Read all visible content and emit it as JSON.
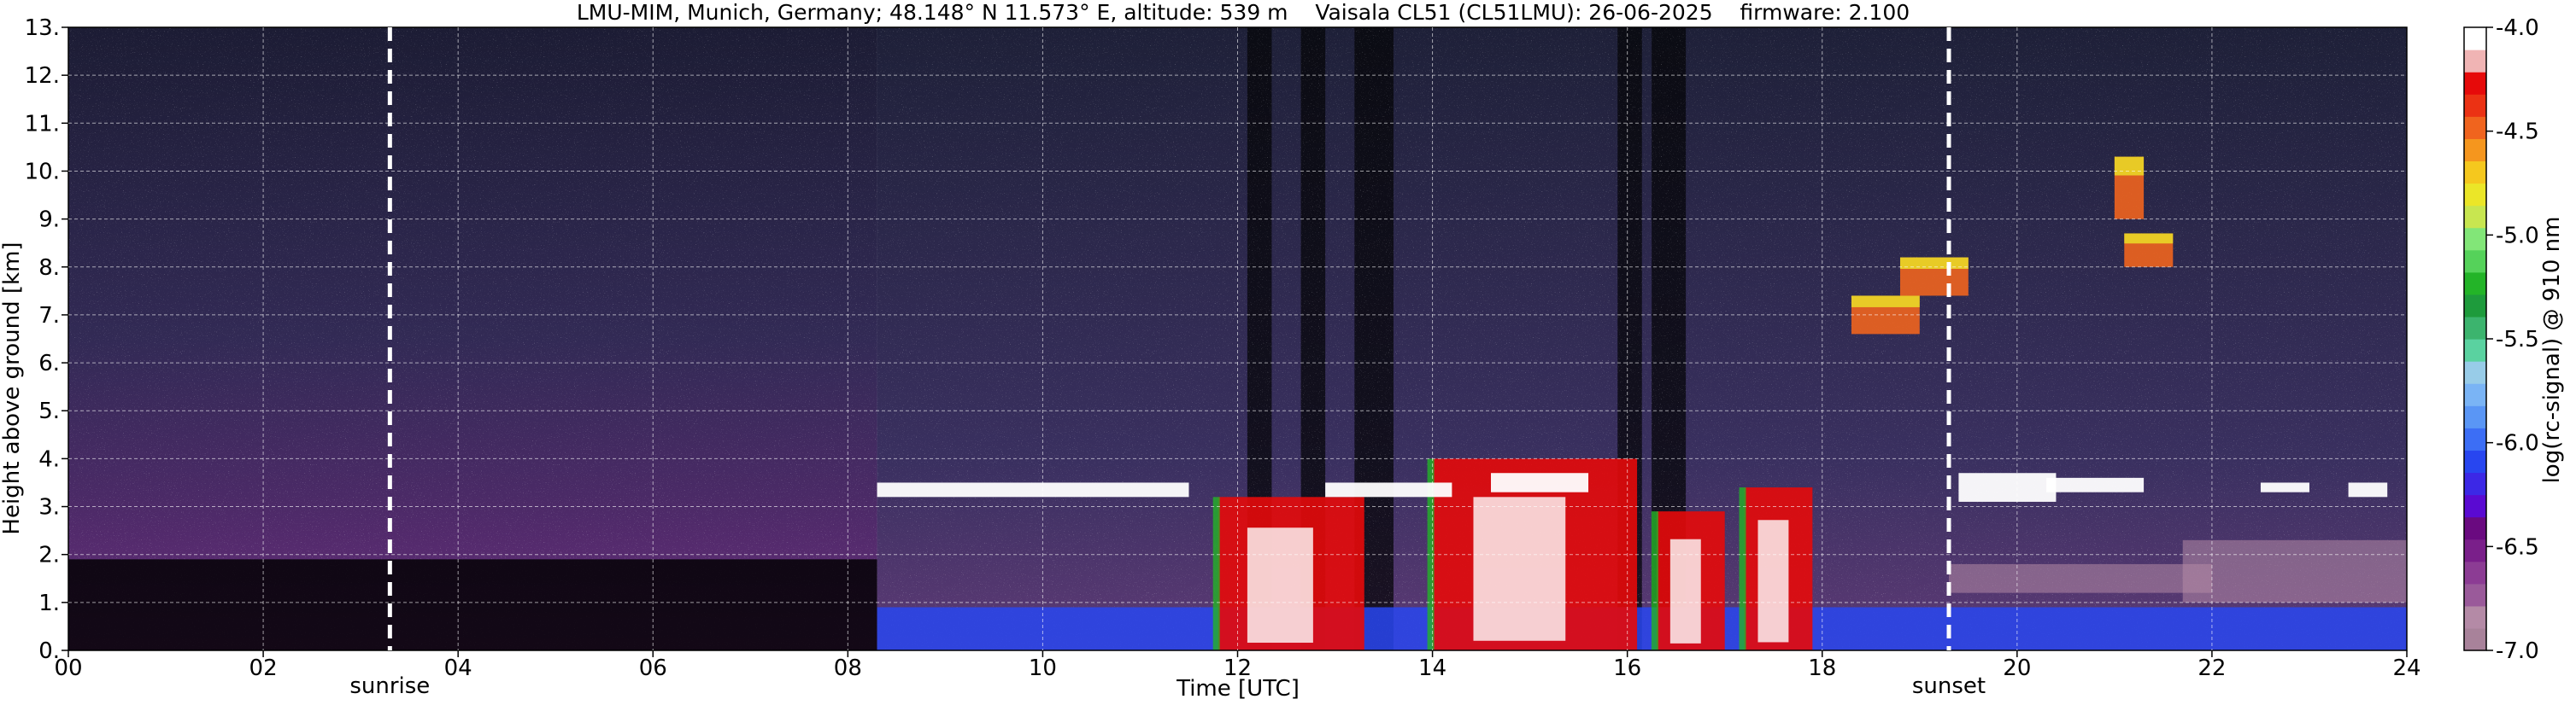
{
  "chart_data": {
    "type": "heatmap",
    "title": "LMU-MIM, Munich, Germany; 48.148° N 11.573° E, altitude: 539 m    Vaisala CL51 (CL51LMU): 26-06-2025    firmware: 2.100",
    "xlabel": "Time [UTC]",
    "ylabel": "Height above ground [km]",
    "x_range": [
      0,
      24
    ],
    "y_range": [
      0,
      13
    ],
    "x_ticks": [
      "00",
      "02",
      "04",
      "06",
      "08",
      "10",
      "12",
      "14",
      "16",
      "18",
      "20",
      "22",
      "24"
    ],
    "y_ticks": [
      "0.",
      "1.",
      "2.",
      "3.",
      "4.",
      "5.",
      "6.",
      "7.",
      "8.",
      "9.",
      "10.",
      "11.",
      "12.",
      "13."
    ],
    "grid": true,
    "markers": [
      {
        "label": "sunrise",
        "time": 3.3
      },
      {
        "label": "sunset",
        "time": 19.3
      }
    ],
    "colorbar": {
      "label": "log(rc-signal) @ 910 nm",
      "range": [
        -7.0,
        -4.0
      ],
      "tick_labels": [
        "-4.0",
        "-4.5",
        "-5.0",
        "-5.5",
        "-6.0",
        "-6.5",
        "-7.0"
      ],
      "colors": [
        "#a8829a",
        "#b48aa6",
        "#9a5a9a",
        "#8c3c94",
        "#7a1f8a",
        "#6a0a80",
        "#5a0ad2",
        "#3c28e6",
        "#2846f0",
        "#3c6ef5",
        "#5a96f5",
        "#7ab4f5",
        "#98cce8",
        "#5ad2a0",
        "#3cb46e",
        "#1e9b3c",
        "#23b428",
        "#55d25a",
        "#82e678",
        "#c8e650",
        "#ebe628",
        "#f5c81e",
        "#f5961e",
        "#f0641e",
        "#eb3214",
        "#e60a0a",
        "#f0b4b4",
        "#ffffff"
      ]
    },
    "features": [
      {
        "name": "low blue layer",
        "time_range": [
          8.3,
          24
        ],
        "height_range": [
          0,
          0.9
        ]
      },
      {
        "name": "cloud signal",
        "time_range": [
          11.8,
          13.3
        ],
        "height_range": [
          0,
          3.2
        ]
      },
      {
        "name": "cloud signal",
        "time_range": [
          14.0,
          16.1
        ],
        "height_range": [
          0,
          4.0
        ]
      },
      {
        "name": "cloud signal",
        "time_range": [
          16.3,
          17.0
        ],
        "height_range": [
          0,
          2.9
        ]
      },
      {
        "name": "cloud signal",
        "time_range": [
          17.2,
          17.9
        ],
        "height_range": [
          0,
          3.4
        ]
      },
      {
        "name": "cloud layer",
        "time_range": [
          8.3,
          11.5
        ],
        "height_range": [
          3.2,
          3.5
        ]
      },
      {
        "name": "cloud layer",
        "time_range": [
          12.9,
          14.2
        ],
        "height_range": [
          3.2,
          3.5
        ]
      },
      {
        "name": "cloud layer",
        "time_range": [
          14.6,
          15.6
        ],
        "height_range": [
          3.3,
          3.7
        ]
      },
      {
        "name": "cloud layer",
        "time_range": [
          19.4,
          20.4
        ],
        "height_range": [
          3.1,
          3.7
        ]
      },
      {
        "name": "cloud layer",
        "time_range": [
          20.3,
          21.3
        ],
        "height_range": [
          3.3,
          3.6
        ]
      },
      {
        "name": "cloud layer",
        "time_range": [
          22.5,
          23.0
        ],
        "height_range": [
          3.3,
          3.5
        ]
      },
      {
        "name": "cloud layer",
        "time_range": [
          23.4,
          23.8
        ],
        "height_range": [
          3.2,
          3.5
        ]
      },
      {
        "name": "high cloud",
        "time_range": [
          18.3,
          19.0
        ],
        "height_range": [
          6.6,
          7.4
        ]
      },
      {
        "name": "high cloud",
        "time_range": [
          18.8,
          19.5
        ],
        "height_range": [
          7.4,
          8.2
        ]
      },
      {
        "name": "high cloud",
        "time_range": [
          21.1,
          21.6
        ],
        "height_range": [
          8.0,
          8.7
        ]
      },
      {
        "name": "high cloud",
        "time_range": [
          21.0,
          21.3
        ],
        "height_range": [
          9.0,
          10.3
        ]
      },
      {
        "name": "aerosol layer",
        "time_range": [
          19.3,
          22.0
        ],
        "height_range": [
          1.2,
          1.8
        ]
      },
      {
        "name": "aerosol layer",
        "time_range": [
          21.7,
          24.0
        ],
        "height_range": [
          1.0,
          2.3
        ]
      }
    ]
  }
}
